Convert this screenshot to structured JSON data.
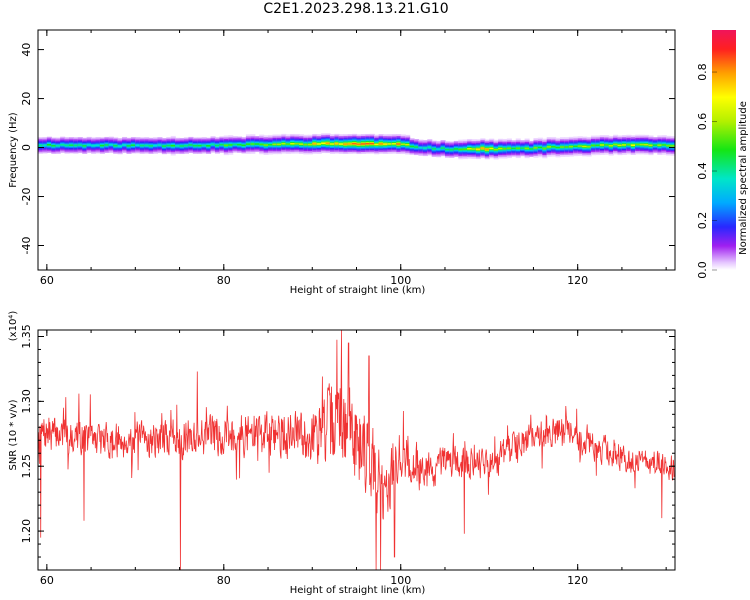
{
  "figure": {
    "title": "C2E1.2023.298.13.21.G10"
  },
  "colors": {
    "line": "#f03232",
    "axis": "#000000"
  },
  "chart_data": [
    {
      "id": "spectrogram",
      "type": "heatmap",
      "xlabel": "Height of straight line (km)",
      "ylabel": "Frequency (Hz)",
      "xlim": [
        59,
        131
      ],
      "ylim": [
        -50,
        48
      ],
      "x_ticks": [
        60,
        80,
        100,
        120
      ],
      "y_ticks": [
        -40,
        -20,
        0,
        20,
        40
      ],
      "band_center_hz": [
        [
          60,
          1.0
        ],
        [
          70,
          0.8
        ],
        [
          80,
          1.0
        ],
        [
          90,
          1.5
        ],
        [
          95,
          1.5
        ],
        [
          100,
          1.3
        ],
        [
          102,
          0.2
        ],
        [
          105,
          -0.6
        ],
        [
          110,
          -0.6
        ],
        [
          115,
          -0.3
        ],
        [
          120,
          0.5
        ],
        [
          125,
          1.0
        ],
        [
          131,
          0.9
        ]
      ],
      "band_halfwidth_hz": 4.0,
      "peak_amplitude": [
        [
          60,
          0.45
        ],
        [
          70,
          0.42
        ],
        [
          80,
          0.48
        ],
        [
          85,
          0.55
        ],
        [
          90,
          0.7
        ],
        [
          95,
          0.85
        ],
        [
          100,
          0.75
        ],
        [
          102,
          0.35
        ],
        [
          105,
          0.45
        ],
        [
          110,
          0.8
        ],
        [
          112,
          0.5
        ],
        [
          120,
          0.55
        ],
        [
          125,
          0.65
        ],
        [
          131,
          0.5
        ]
      ],
      "colorbar": {
        "label": "Normalized spectral amplitude",
        "range": [
          0.0,
          0.97
        ],
        "ticks": [
          "0.0",
          "0.2",
          "0.4",
          "0.6",
          "0.8"
        ]
      }
    },
    {
      "id": "snr",
      "type": "line",
      "xlabel": "Height of straight line (km)",
      "ylabel": "SNR (10 * v/v)",
      "multiplier": "(x10⁴)",
      "xlim": [
        59,
        131
      ],
      "ylim": [
        1.17,
        1.355
      ],
      "x_ticks": [
        60,
        80,
        100,
        120
      ],
      "y_ticks": [
        "1.20",
        "1.25",
        "1.30",
        "1.35"
      ],
      "trend": [
        [
          59,
          1.275
        ],
        [
          62,
          1.275
        ],
        [
          66,
          1.27
        ],
        [
          70,
          1.27
        ],
        [
          74,
          1.272
        ],
        [
          78,
          1.274
        ],
        [
          82,
          1.275
        ],
        [
          86,
          1.275
        ],
        [
          90,
          1.273
        ],
        [
          93,
          1.285
        ],
        [
          96,
          1.265
        ],
        [
          98,
          1.23
        ],
        [
          100,
          1.26
        ],
        [
          103,
          1.245
        ],
        [
          106,
          1.255
        ],
        [
          110,
          1.25
        ],
        [
          114,
          1.27
        ],
        [
          118,
          1.278
        ],
        [
          122,
          1.265
        ],
        [
          126,
          1.255
        ],
        [
          131,
          1.25
        ]
      ],
      "noise_amplitude": [
        [
          59,
          0.02
        ],
        [
          75,
          0.022
        ],
        [
          90,
          0.03
        ],
        [
          93,
          0.055
        ],
        [
          97,
          0.05
        ],
        [
          100,
          0.035
        ],
        [
          104,
          0.02
        ],
        [
          115,
          0.018
        ],
        [
          131,
          0.016
        ]
      ],
      "extremes": [
        [
          59.3,
          1.195
        ],
        [
          64.2,
          1.208
        ],
        [
          75.1,
          1.17
        ],
        [
          77.0,
          1.323
        ],
        [
          93.3,
          1.355
        ],
        [
          94.1,
          1.345
        ],
        [
          96.4,
          1.335
        ],
        [
          97.2,
          1.17
        ],
        [
          99.3,
          1.18
        ],
        [
          107.2,
          1.198
        ],
        [
          129.5,
          1.21
        ]
      ]
    }
  ]
}
